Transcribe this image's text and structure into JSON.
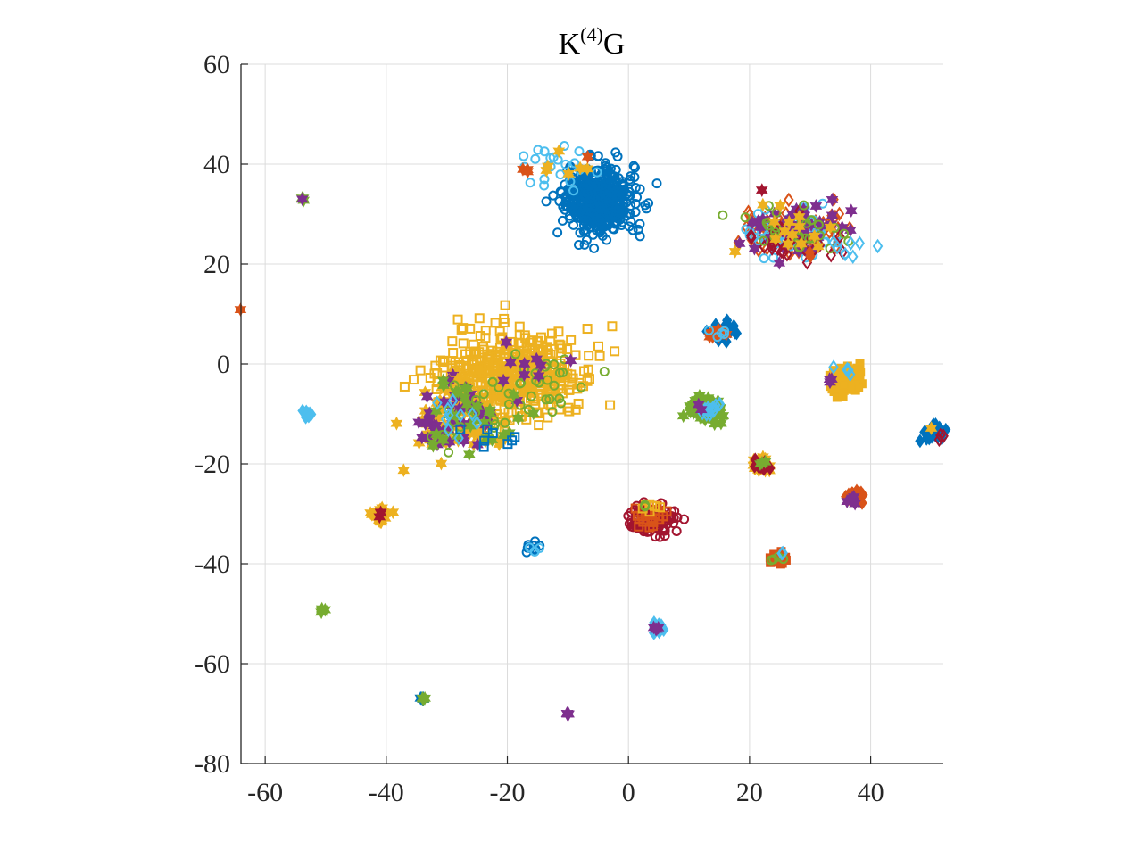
{
  "chart_data": {
    "type": "scatter",
    "title": {
      "base": "K",
      "sup": "(4)",
      "tail": "G"
    },
    "xlabel": "",
    "ylabel": "",
    "xlim": [
      -64,
      52
    ],
    "ylim": [
      -80,
      60
    ],
    "x_ticks": [
      -60,
      -40,
      -20,
      0,
      20,
      40
    ],
    "y_ticks": [
      60,
      40,
      20,
      0,
      -20,
      -40,
      -60,
      -80
    ],
    "grid": true,
    "legend": "none",
    "colors": {
      "blue": "#0072BD",
      "orange": "#D95319",
      "yellow": "#EDB120",
      "purple": "#7E2F8E",
      "green": "#77AC30",
      "cyan": "#4DBEEE",
      "red": "#A2142F"
    },
    "clusters": [
      {
        "x": -5,
        "y": 33,
        "sx": 2.8,
        "sy": 3.2,
        "n": 520,
        "marker": "circle-open",
        "color": "blue"
      },
      {
        "x": -12,
        "y": 39,
        "sx": 2.6,
        "sy": 2.5,
        "n": 22,
        "marker": "circle-open",
        "color": "cyan"
      },
      {
        "x": -12,
        "y": 40,
        "sx": 3,
        "sy": 2,
        "n": 6,
        "marker": "hexagram",
        "color": "yellow"
      },
      {
        "x": -17,
        "y": 39,
        "sx": 0.4,
        "sy": 0.4,
        "n": 3,
        "marker": "hexagram",
        "color": "orange"
      },
      {
        "x": -6.5,
        "y": 41.5,
        "sx": 0.2,
        "sy": 0.2,
        "n": 1,
        "marker": "hexagram",
        "color": "orange"
      },
      {
        "x": 27,
        "y": 26.5,
        "sx": 4.5,
        "sy": 2.5,
        "n": 70,
        "marker": "diamond-open",
        "color": "orange"
      },
      {
        "x": 27,
        "y": 26.5,
        "sx": 4.5,
        "sy": 2.3,
        "n": 70,
        "marker": "circle-open",
        "color": "cyan"
      },
      {
        "x": 28,
        "y": 27,
        "sx": 4,
        "sy": 2.4,
        "n": 50,
        "marker": "hexagram",
        "color": "purple"
      },
      {
        "x": 27,
        "y": 25,
        "sx": 4,
        "sy": 2.5,
        "n": 30,
        "marker": "diamond-open",
        "color": "red"
      },
      {
        "x": 28,
        "y": 27,
        "sx": 4.5,
        "sy": 2.5,
        "n": 30,
        "marker": "circle-open",
        "color": "green"
      },
      {
        "x": 27,
        "y": 27,
        "sx": 4,
        "sy": 2.4,
        "n": 15,
        "marker": "hexagram",
        "color": "yellow"
      },
      {
        "x": 37,
        "y": 24,
        "sx": 2,
        "sy": 1.5,
        "n": 6,
        "marker": "diamond-open",
        "color": "cyan"
      },
      {
        "x": 30,
        "y": 22,
        "sx": 0.4,
        "sy": 0.4,
        "n": 2,
        "marker": "diamond",
        "color": "orange"
      },
      {
        "x": 22,
        "y": 35,
        "sx": 0.3,
        "sy": 0.3,
        "n": 1,
        "marker": "hexagram",
        "color": "red"
      },
      {
        "x": 41.5,
        "y": 23.5,
        "sx": 0.2,
        "sy": 0.2,
        "n": 1,
        "marker": "diamond-open",
        "color": "cyan"
      },
      {
        "x": -54,
        "y": 33,
        "sx": 0.2,
        "sy": 0.2,
        "n": 4,
        "marker": "hexagram",
        "color": "green"
      },
      {
        "x": -54,
        "y": 33,
        "sx": 0.1,
        "sy": 0.1,
        "n": 1,
        "marker": "hexagram",
        "color": "purple"
      },
      {
        "x": -64,
        "y": 11,
        "sx": 0.1,
        "sy": 0.1,
        "n": 1,
        "marker": "hexagram",
        "color": "orange"
      },
      {
        "x": -53,
        "y": -10,
        "sx": 0.35,
        "sy": 0.4,
        "n": 14,
        "marker": "diamond",
        "color": "cyan"
      },
      {
        "x": -19,
        "y": -2,
        "sx": 5.5,
        "sy": 4.2,
        "n": 480,
        "marker": "square-open",
        "color": "yellow"
      },
      {
        "x": -14,
        "y": -4,
        "sx": 4,
        "sy": 3.5,
        "n": 28,
        "marker": "circle-open",
        "color": "green"
      },
      {
        "x": -17,
        "y": -1,
        "sx": 5,
        "sy": 3,
        "n": 10,
        "marker": "hexagram",
        "color": "purple"
      },
      {
        "x": -28,
        "y": -11,
        "sx": 3.5,
        "sy": 3.5,
        "n": 80,
        "marker": "hexagram",
        "color": "yellow"
      },
      {
        "x": -28,
        "y": -11,
        "sx": 3.5,
        "sy": 3.5,
        "n": 40,
        "marker": "hexagram",
        "color": "purple"
      },
      {
        "x": -26,
        "y": -10,
        "sx": 4,
        "sy": 3.5,
        "n": 30,
        "marker": "hexagram",
        "color": "green"
      },
      {
        "x": -26,
        "y": -12,
        "sx": 4,
        "sy": 3,
        "n": 18,
        "marker": "circle-open",
        "color": "green"
      },
      {
        "x": -27,
        "y": -12,
        "sx": 4,
        "sy": 3,
        "n": 10,
        "marker": "diamond-open",
        "color": "cyan"
      },
      {
        "x": -22,
        "y": -15,
        "sx": 3,
        "sy": 1,
        "n": 8,
        "marker": "square-open",
        "color": "blue"
      },
      {
        "x": 15.5,
        "y": 6.5,
        "sx": 1.1,
        "sy": 0.8,
        "n": 30,
        "marker": "diamond",
        "color": "blue"
      },
      {
        "x": 15,
        "y": 6,
        "sx": 1,
        "sy": 0.8,
        "n": 8,
        "marker": "hexagram",
        "color": "orange"
      },
      {
        "x": 15,
        "y": 6.5,
        "sx": 0.9,
        "sy": 0.7,
        "n": 5,
        "marker": "circle-open",
        "color": "cyan"
      },
      {
        "x": 36,
        "y": -3,
        "sx": 1.2,
        "sy": 1.4,
        "n": 90,
        "marker": "square",
        "color": "yellow"
      },
      {
        "x": 35.5,
        "y": -1,
        "sx": 0.9,
        "sy": 0.6,
        "n": 5,
        "marker": "diamond-open",
        "color": "cyan"
      },
      {
        "x": 33.5,
        "y": -3.5,
        "sx": 0.4,
        "sy": 0.7,
        "n": 3,
        "marker": "hexagram",
        "color": "purple"
      },
      {
        "x": 12.5,
        "y": -9,
        "sx": 1.6,
        "sy": 1.2,
        "n": 70,
        "marker": "hexagram",
        "color": "green"
      },
      {
        "x": 13,
        "y": -9,
        "sx": 1.3,
        "sy": 1,
        "n": 12,
        "marker": "diamond-open",
        "color": "cyan"
      },
      {
        "x": 11.5,
        "y": -8.5,
        "sx": 0.5,
        "sy": 0.4,
        "n": 2,
        "marker": "hexagram",
        "color": "purple"
      },
      {
        "x": 50.5,
        "y": -14,
        "sx": 0.9,
        "sy": 0.8,
        "n": 25,
        "marker": "diamond",
        "color": "blue"
      },
      {
        "x": 51.5,
        "y": -14.5,
        "sx": 0.3,
        "sy": 0.3,
        "n": 3,
        "marker": "diamond-open",
        "color": "red"
      },
      {
        "x": 50,
        "y": -13,
        "sx": 0.2,
        "sy": 0.2,
        "n": 1,
        "marker": "hexagram",
        "color": "yellow"
      },
      {
        "x": 22,
        "y": -20.5,
        "sx": 0.8,
        "sy": 0.7,
        "n": 28,
        "marker": "hexagram",
        "color": "yellow"
      },
      {
        "x": 22,
        "y": -20.5,
        "sx": 0.6,
        "sy": 0.6,
        "n": 10,
        "marker": "diamond",
        "color": "red"
      },
      {
        "x": 22,
        "y": -20,
        "sx": 0.4,
        "sy": 0.4,
        "n": 3,
        "marker": "hexagram",
        "color": "green"
      },
      {
        "x": 37.5,
        "y": -26.5,
        "sx": 0.9,
        "sy": 0.6,
        "n": 28,
        "marker": "diamond",
        "color": "orange"
      },
      {
        "x": 37,
        "y": -27,
        "sx": 0.5,
        "sy": 0.5,
        "n": 5,
        "marker": "hexagram",
        "color": "purple"
      },
      {
        "x": 4,
        "y": -31,
        "sx": 1.8,
        "sy": 1.5,
        "n": 130,
        "marker": "circle-open",
        "color": "red"
      },
      {
        "x": 3.5,
        "y": -30.5,
        "sx": 1.3,
        "sy": 1.3,
        "n": 20,
        "marker": "square-open",
        "color": "orange"
      },
      {
        "x": 3.5,
        "y": -28.5,
        "sx": 0.8,
        "sy": 0.6,
        "n": 6,
        "marker": "square-open",
        "color": "yellow"
      },
      {
        "x": 2.5,
        "y": -29,
        "sx": 0.4,
        "sy": 0.4,
        "n": 2,
        "marker": "circle-open",
        "color": "green"
      },
      {
        "x": -41,
        "y": -30,
        "sx": 0.7,
        "sy": 0.6,
        "n": 28,
        "marker": "hexagram",
        "color": "yellow"
      },
      {
        "x": -41,
        "y": -30,
        "sx": 0.3,
        "sy": 0.3,
        "n": 3,
        "marker": "hexagram",
        "color": "red"
      },
      {
        "x": -15.5,
        "y": -37,
        "sx": 0.6,
        "sy": 0.5,
        "n": 15,
        "marker": "circle-open",
        "color": "blue"
      },
      {
        "x": -15.5,
        "y": -37,
        "sx": 0.4,
        "sy": 0.4,
        "n": 4,
        "marker": "circle-open",
        "color": "cyan"
      },
      {
        "x": 24.5,
        "y": -39,
        "sx": 0.8,
        "sy": 0.6,
        "n": 22,
        "marker": "square",
        "color": "orange"
      },
      {
        "x": 24.5,
        "y": -39,
        "sx": 0.5,
        "sy": 0.5,
        "n": 4,
        "marker": "circle-open",
        "color": "green"
      },
      {
        "x": 25.5,
        "y": -38,
        "sx": 0.3,
        "sy": 0.3,
        "n": 2,
        "marker": "diamond-open",
        "color": "cyan"
      },
      {
        "x": -50.5,
        "y": -49.2,
        "sx": 0.2,
        "sy": 0.2,
        "n": 4,
        "marker": "hexagram",
        "color": "green"
      },
      {
        "x": 5,
        "y": -53,
        "sx": 0.5,
        "sy": 0.5,
        "n": 14,
        "marker": "diamond",
        "color": "cyan"
      },
      {
        "x": 4.5,
        "y": -53,
        "sx": 0.4,
        "sy": 0.4,
        "n": 4,
        "marker": "hexagram",
        "color": "purple"
      },
      {
        "x": -34,
        "y": -67,
        "sx": 0.2,
        "sy": 0.2,
        "n": 5,
        "marker": "hexagram",
        "color": "blue"
      },
      {
        "x": -34,
        "y": -67,
        "sx": 0.15,
        "sy": 0.15,
        "n": 3,
        "marker": "hexagram",
        "color": "green"
      },
      {
        "x": -10,
        "y": -70,
        "sx": 0.15,
        "sy": 0.15,
        "n": 4,
        "marker": "hexagram",
        "color": "purple"
      }
    ]
  }
}
